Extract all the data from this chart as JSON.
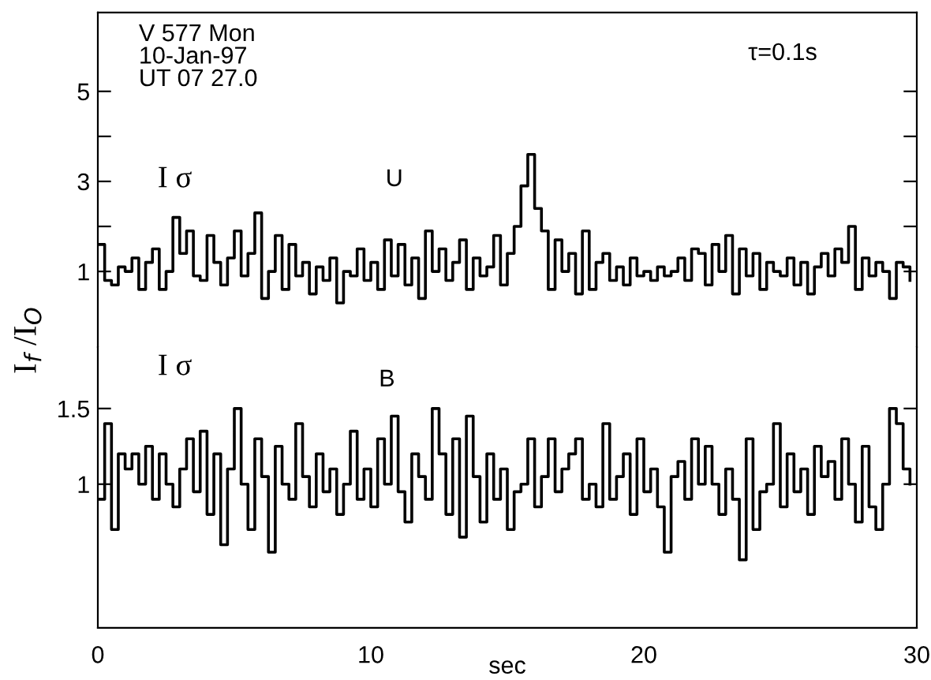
{
  "chart_data": [
    {
      "type": "step",
      "ylabel": "I$_{f}$ /I$_{O}$",
      "annotations": [
        "V 577 Mon\n10-Jan-97\nUT 07 27.0",
        "τ=0.1s",
        "I σ",
        "U"
      ],
      "x": [
        0,
        0.25,
        0.5,
        0.75,
        1,
        1.25,
        1.5,
        1.75,
        2,
        2.25,
        2.5,
        2.75,
        3,
        3.25,
        3.5,
        3.75,
        4,
        4.25,
        4.5,
        4.75,
        5,
        5.25,
        5.5,
        5.75,
        6,
        6.25,
        6.5,
        6.75,
        7,
        7.25,
        7.5,
        7.75,
        8,
        8.25,
        8.5,
        8.75,
        9,
        9.25,
        9.5,
        9.75,
        10,
        10.25,
        10.5,
        10.75,
        11,
        11.25,
        11.5,
        11.75,
        12,
        12.25,
        12.5,
        12.75,
        13,
        13.25,
        13.5,
        13.75,
        14,
        14.25,
        14.5,
        14.75,
        15,
        15.25,
        15.5,
        15.75,
        16,
        16.25,
        16.5,
        16.75,
        17,
        17.25,
        17.5,
        17.75,
        18,
        18.25,
        18.5,
        18.75,
        19,
        19.25,
        19.5,
        19.75,
        20,
        20.25,
        20.5,
        20.75,
        21,
        21.25,
        21.5,
        21.75,
        22,
        22.25,
        22.5,
        22.75,
        23,
        23.25,
        23.5,
        23.75,
        24,
        24.25,
        24.5,
        24.75,
        25,
        25.25,
        25.5,
        25.75,
        26,
        26.25,
        26.5,
        26.75,
        27,
        27.25,
        27.5,
        27.75,
        28,
        28.25,
        28.5,
        28.75,
        29,
        29.25,
        29.5,
        29.75
      ],
      "series": [
        {
          "color": "#000000",
          "values": [
            1.6,
            0.8,
            0.7,
            1.1,
            1.0,
            1.3,
            0.6,
            1.2,
            1.5,
            0.6,
            1.0,
            2.2,
            1.4,
            1.9,
            0.9,
            0.8,
            1.8,
            1.2,
            0.7,
            1.3,
            1.9,
            0.9,
            1.4,
            2.3,
            0.4,
            1.0,
            1.8,
            0.6,
            1.6,
            0.9,
            1.2,
            0.5,
            1.1,
            0.8,
            1.3,
            0.3,
            1.0,
            0.9,
            1.5,
            0.8,
            1.2,
            0.6,
            1.7,
            0.9,
            1.6,
            0.7,
            1.3,
            0.4,
            1.9,
            1.0,
            1.5,
            0.8,
            1.2,
            1.7,
            0.6,
            1.3,
            0.9,
            1.1,
            1.8,
            0.7,
            1.4,
            2.0,
            2.9,
            3.6,
            2.4,
            1.9,
            0.6,
            1.7,
            1.0,
            1.4,
            0.5,
            1.9,
            0.6,
            1.2,
            1.4,
            0.8,
            1.1,
            0.7,
            1.3,
            0.9,
            1.0,
            0.8,
            1.1,
            0.9,
            1.0,
            1.3,
            0.8,
            1.5,
            1.4,
            0.7,
            1.6,
            1.0,
            1.8,
            0.5,
            1.5,
            0.9,
            1.4,
            0.6,
            1.2,
            1.0,
            0.9,
            1.3,
            0.7,
            1.2,
            0.5,
            1.1,
            1.4,
            0.9,
            1.5,
            1.2,
            2.0,
            0.6,
            1.3,
            0.9,
            1.2,
            1.0,
            0.4,
            1.2,
            1.1,
            0.8
          ]
        }
      ],
      "xlim": [
        0,
        30
      ],
      "ylim": [
        -0.68,
        6.75
      ],
      "yticks": [
        {
          "value": 1,
          "label": "1"
        },
        {
          "value": 2,
          "label": null
        },
        {
          "value": 3,
          "label": "3"
        },
        {
          "value": 4,
          "label": null
        },
        {
          "value": 5,
          "label": "5"
        }
      ],
      "tick_labels": "y",
      "grid": false,
      "legend": false
    },
    {
      "type": "step",
      "xlabel": "sec",
      "annotations": [
        "I σ",
        "B"
      ],
      "x": [
        0,
        0.25,
        0.5,
        0.75,
        1,
        1.25,
        1.5,
        1.75,
        2,
        2.25,
        2.5,
        2.75,
        3,
        3.25,
        3.5,
        3.75,
        4,
        4.25,
        4.5,
        4.75,
        5,
        5.25,
        5.5,
        5.75,
        6,
        6.25,
        6.5,
        6.75,
        7,
        7.25,
        7.5,
        7.75,
        8,
        8.25,
        8.5,
        8.75,
        9,
        9.25,
        9.5,
        9.75,
        10,
        10.25,
        10.5,
        10.75,
        11,
        11.25,
        11.5,
        11.75,
        12,
        12.25,
        12.5,
        12.75,
        13,
        13.25,
        13.5,
        13.75,
        14,
        14.25,
        14.5,
        14.75,
        15,
        15.25,
        15.5,
        15.75,
        16,
        16.25,
        16.5,
        16.75,
        17,
        17.25,
        17.5,
        17.75,
        18,
        18.25,
        18.5,
        18.75,
        19,
        19.25,
        19.5,
        19.75,
        20,
        20.25,
        20.5,
        20.75,
        21,
        21.25,
        21.5,
        21.75,
        22,
        22.25,
        22.5,
        22.75,
        23,
        23.25,
        23.5,
        23.75,
        24,
        24.25,
        24.5,
        24.75,
        25,
        25.25,
        25.5,
        25.75,
        26,
        26.25,
        26.5,
        26.75,
        27,
        27.25,
        27.5,
        27.75,
        28,
        28.25,
        28.5,
        28.75,
        29,
        29.25,
        29.5,
        29.75
      ],
      "series": [
        {
          "color": "#000000",
          "values": [
            0.9,
            1.4,
            0.7,
            1.2,
            1.1,
            1.2,
            1.0,
            1.25,
            0.9,
            1.2,
            1.0,
            0.85,
            1.1,
            1.3,
            0.95,
            1.35,
            0.8,
            1.2,
            0.6,
            1.1,
            1.5,
            1.0,
            0.7,
            1.3,
            1.05,
            0.55,
            1.25,
            1.0,
            0.9,
            1.4,
            1.05,
            0.85,
            1.2,
            0.95,
            1.1,
            0.8,
            1.0,
            1.35,
            0.9,
            1.1,
            0.85,
            1.3,
            1.0,
            1.45,
            0.95,
            0.75,
            1.2,
            1.05,
            0.9,
            1.5,
            1.2,
            0.8,
            1.3,
            0.65,
            1.45,
            1.05,
            0.75,
            1.2,
            0.9,
            1.1,
            0.7,
            0.95,
            1.0,
            1.3,
            0.85,
            1.05,
            1.3,
            0.95,
            1.1,
            1.2,
            1.3,
            0.9,
            1.0,
            0.85,
            1.4,
            0.9,
            1.05,
            1.2,
            0.8,
            1.3,
            0.95,
            1.1,
            0.85,
            0.55,
            1.05,
            1.15,
            0.9,
            1.3,
            1.0,
            1.25,
            1.0,
            0.8,
            1.1,
            0.9,
            0.5,
            1.3,
            0.7,
            0.95,
            1.0,
            1.4,
            0.85,
            1.2,
            0.95,
            1.1,
            0.8,
            1.25,
            1.05,
            1.15,
            0.9,
            1.3,
            1.0,
            0.75,
            1.25,
            0.85,
            0.7,
            1.0,
            1.5,
            1.4,
            1.1,
            1.0
          ]
        }
      ],
      "xlim": [
        0,
        30
      ],
      "ylim": [
        0.05,
        1.906
      ],
      "xticks": [
        0,
        10,
        20,
        30
      ],
      "yticks": [
        1,
        1.5
      ],
      "grid": false,
      "legend": false
    }
  ]
}
